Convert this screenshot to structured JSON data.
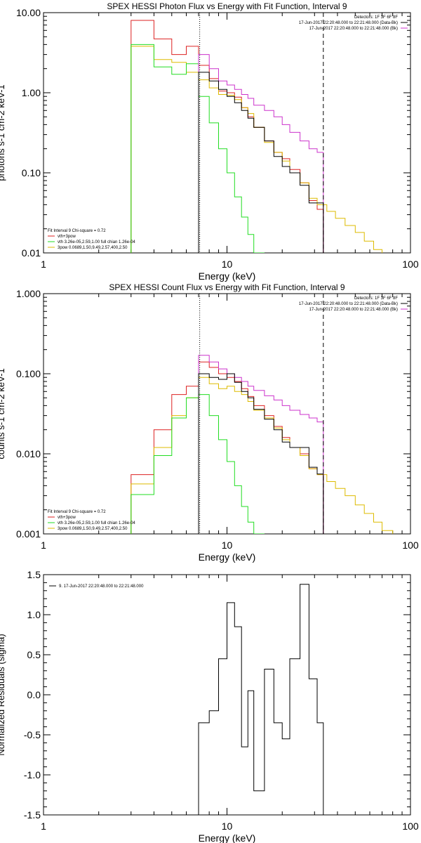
{
  "chart_data": [
    {
      "type": "line",
      "title": "SPEX HESSI Photon Flux vs Energy with Fit Function, Interval 9",
      "xlabel": "Energy (keV)",
      "ylabel": "photons s-1 cm-2 keV-1",
      "xscale": "log",
      "yscale": "log",
      "xlim": [
        1,
        100
      ],
      "ylim": [
        0.01,
        10
      ],
      "xticks": [
        1,
        10,
        100
      ],
      "xtick_labels": [
        "1",
        "10",
        "100"
      ],
      "yticks": [
        0.01,
        0.1,
        1,
        10
      ],
      "ytick_labels": [
        "0.01",
        "0.10",
        "1.00",
        "10.00"
      ],
      "vlines": [
        {
          "x": 7.1,
          "style": "dotted",
          "color": "#000000"
        },
        {
          "x": 33.5,
          "style": "dashed",
          "color": "#000000"
        }
      ],
      "legend_top_right": {
        "lines": [
          {
            "text": "Detectors: 1F 3F 6F 8F",
            "color": "",
            "swatch": false
          },
          {
            "text": "17-Jun-2017 22:20:48.000 to 22:21:48.000 (Data-Bk)",
            "color": "#000000",
            "swatch": true
          },
          {
            "text": "17-Jun-2017 22:20:48.000 to 22:21:48.000 (Bk)",
            "color": "#cc33cc",
            "swatch": true
          }
        ]
      },
      "legend_bottom_left": {
        "lines": [
          {
            "text": "Fit Interval 9   Chi-square = 0.72",
            "color": "",
            "swatch": false
          },
          {
            "text": "vth+3pow",
            "color": "#dd2222",
            "swatch": true
          },
          {
            "text": "vth 3.26e-05,2.59,1.00  full chian 1.26e-04",
            "color": "#22dd22",
            "swatch": true
          },
          {
            "text": "3pow 0.0689,1.50,9.49,2.57,400,2.50",
            "color": "#ddbb00",
            "swatch": true
          }
        ]
      },
      "series": [
        {
          "color": "#dd2222",
          "edges": [
            3,
            4,
            5,
            6,
            7
          ],
          "values": [
            8.0,
            4.7,
            3.0,
            3.8
          ]
        },
        {
          "color": "#dd2222",
          "edges": [
            7,
            8,
            9,
            10,
            11,
            12,
            13,
            14,
            16,
            18,
            20,
            22,
            25,
            28,
            31,
            33.5
          ],
          "values": [
            2.2,
            1.5,
            1.05,
            1.0,
            0.88,
            0.65,
            0.5,
            0.37,
            0.25,
            0.18,
            0.15,
            0.11,
            0.075,
            0.045,
            0.035
          ]
        },
        {
          "color": "#ddbb00",
          "edges": [
            3,
            4,
            5,
            6,
            7,
            8,
            9,
            10,
            11,
            12,
            13,
            14,
            16,
            18,
            20,
            22,
            25,
            28,
            31,
            35,
            39,
            44,
            50,
            56,
            63,
            70
          ],
          "values": [
            3.8,
            2.6,
            2.4,
            1.8,
            1.45,
            1.15,
            0.95,
            0.93,
            0.82,
            0.65,
            0.55,
            0.37,
            0.24,
            0.18,
            0.14,
            0.1,
            0.075,
            0.048,
            0.04,
            0.033,
            0.027,
            0.022,
            0.018,
            0.014,
            0.011
          ]
        },
        {
          "color": "#22dd22",
          "edges": [
            3,
            4,
            5,
            6,
            7,
            8,
            9,
            10,
            11,
            12,
            13,
            14,
            16
          ],
          "values": [
            4.0,
            2.1,
            1.7,
            2.3,
            0.9,
            0.42,
            0.2,
            0.1,
            0.05,
            0.028,
            0.017,
            0.009
          ]
        },
        {
          "color": "#cc33cc",
          "edges": [
            7,
            8,
            9,
            10,
            11,
            12,
            13,
            14,
            16,
            18,
            20,
            22,
            25,
            28,
            31,
            33.5
          ],
          "values": [
            3.0,
            2.0,
            1.4,
            1.25,
            1.1,
            0.95,
            0.85,
            0.7,
            0.6,
            0.5,
            0.4,
            0.32,
            0.25,
            0.2,
            0.18
          ]
        },
        {
          "color": "#000000",
          "edges": [
            7,
            8,
            9,
            10,
            11,
            12,
            13,
            14,
            16,
            18,
            20,
            22,
            25,
            28,
            31,
            33.5
          ],
          "values": [
            1.8,
            1.4,
            1.1,
            0.9,
            0.75,
            0.6,
            0.48,
            0.37,
            0.25,
            0.16,
            0.12,
            0.1,
            0.07,
            0.042,
            0.042
          ]
        }
      ]
    },
    {
      "type": "line",
      "title": "SPEX HESSI Count Flux vs Energy with Fit Function, Interval 9",
      "xlabel": "Energy (keV)",
      "ylabel": "counts s-1 cm-2 keV-1",
      "xscale": "log",
      "yscale": "log",
      "xlim": [
        1,
        100
      ],
      "ylim": [
        0.001,
        1
      ],
      "xticks": [
        1,
        10,
        100
      ],
      "xtick_labels": [
        "1",
        "10",
        "100"
      ],
      "yticks": [
        0.001,
        0.01,
        0.1,
        1
      ],
      "ytick_labels": [
        "0.001",
        "0.010",
        "0.100",
        "1.000"
      ],
      "vlines": [
        {
          "x": 7.1,
          "style": "dotted",
          "color": "#000000"
        },
        {
          "x": 33.5,
          "style": "dashed",
          "color": "#000000"
        }
      ],
      "legend_top_right": {
        "lines": [
          {
            "text": "Detectors: 1F 3F 6F 8F",
            "color": "",
            "swatch": false
          },
          {
            "text": "17-Jun-2017 22:20:48.000 to 22:21:48.000 (Data-Bk)",
            "color": "#000000",
            "swatch": true
          },
          {
            "text": "17-Jun-2017 22:20:48.000 to 22:21:48.000 (Bk)",
            "color": "#cc33cc",
            "swatch": true
          }
        ]
      },
      "legend_bottom_left": {
        "lines": [
          {
            "text": "Fit Interval 9   Chi-square = 0.72",
            "color": "",
            "swatch": false
          },
          {
            "text": "vth+3pow",
            "color": "#dd2222",
            "swatch": true
          },
          {
            "text": "vth 3.26e-05,2.59,1.00  full chian 1.26e-04",
            "color": "#22dd22",
            "swatch": true
          },
          {
            "text": "3pow 0.0689,1.50,9.49,2.57,400,2.50",
            "color": "#ddbb00",
            "swatch": true
          }
        ]
      },
      "series": [
        {
          "color": "#dd2222",
          "edges": [
            3,
            4,
            5,
            6,
            7,
            8,
            9,
            10,
            11,
            12,
            13,
            14,
            16,
            18,
            20,
            22,
            25,
            28,
            31,
            33.5
          ],
          "values": [
            0.0055,
            0.02,
            0.055,
            0.07,
            0.14,
            0.12,
            0.1,
            0.09,
            0.08,
            0.065,
            0.052,
            0.04,
            0.03,
            0.022,
            0.016,
            0.012,
            0.01,
            0.0065,
            0.0055
          ]
        },
        {
          "color": "#ddbb00",
          "edges": [
            3,
            4,
            5,
            6,
            7,
            8,
            9,
            10,
            11,
            12,
            13,
            14,
            16,
            18,
            20,
            22,
            25,
            28,
            31,
            35,
            39,
            44,
            50,
            56,
            63,
            70,
            80
          ],
          "values": [
            0.0042,
            0.012,
            0.03,
            0.05,
            0.09,
            0.075,
            0.065,
            0.07,
            0.06,
            0.055,
            0.045,
            0.035,
            0.028,
            0.021,
            0.015,
            0.012,
            0.0095,
            0.0065,
            0.0055,
            0.0045,
            0.0037,
            0.003,
            0.0023,
            0.0018,
            0.0014,
            0.0011
          ]
        },
        {
          "color": "#22dd22",
          "edges": [
            3,
            4,
            5,
            6,
            7,
            8,
            9,
            10,
            11,
            12,
            13,
            14,
            16
          ],
          "values": [
            0.0031,
            0.0095,
            0.028,
            0.05,
            0.055,
            0.03,
            0.015,
            0.008,
            0.004,
            0.0022,
            0.0014,
            0.001
          ]
        },
        {
          "color": "#cc33cc",
          "edges": [
            7,
            8,
            9,
            10,
            11,
            12,
            13,
            14,
            16,
            18,
            20,
            22,
            25,
            28,
            31,
            33.5
          ],
          "values": [
            0.17,
            0.14,
            0.115,
            0.1,
            0.09,
            0.08,
            0.07,
            0.062,
            0.053,
            0.047,
            0.04,
            0.035,
            0.031,
            0.028,
            0.025
          ]
        },
        {
          "color": "#000000",
          "edges": [
            7,
            8,
            9,
            10,
            11,
            12,
            13,
            14,
            16,
            18,
            20,
            22,
            25,
            28,
            31,
            33.5
          ],
          "values": [
            0.1,
            0.09,
            0.085,
            0.1,
            0.078,
            0.06,
            0.05,
            0.036,
            0.027,
            0.02,
            0.014,
            0.012,
            0.012,
            0.0068,
            0.0056
          ]
        }
      ]
    },
    {
      "type": "line",
      "title": "",
      "xlabel": "Energy (keV)",
      "ylabel": "Normalized Residuals (sigma)",
      "xscale": "log",
      "yscale": "linear",
      "xlim": [
        1,
        100
      ],
      "ylim": [
        -1.5,
        1.5
      ],
      "xticks": [
        1,
        10,
        100
      ],
      "xtick_labels": [
        "1",
        "10",
        "100"
      ],
      "yticks": [
        -1.5,
        -1.0,
        -0.5,
        0.0,
        0.5,
        1.0,
        1.5
      ],
      "ytick_labels": [
        "-1.5",
        "-1.0",
        "-0.5",
        "0.0",
        "0.5",
        "1.0",
        "1.5"
      ],
      "vlines": [],
      "legend_top_left": {
        "lines": [
          {
            "text": "9. 17-Jun-2017 22:20:48.000 to 22:21:48.000",
            "color": "#000000",
            "swatch": true
          }
        ]
      },
      "series": [
        {
          "color": "#000000",
          "edges": [
            7,
            8,
            9,
            10,
            11,
            12,
            13,
            14,
            16,
            18,
            20,
            22,
            25,
            28,
            31,
            33.5
          ],
          "values": [
            -0.35,
            -0.2,
            0.45,
            1.15,
            0.85,
            -0.65,
            0.05,
            -1.2,
            0.32,
            -0.35,
            -0.55,
            0.45,
            1.38,
            0.2,
            -0.35
          ],
          "drop_to_bottom": true
        }
      ]
    }
  ]
}
